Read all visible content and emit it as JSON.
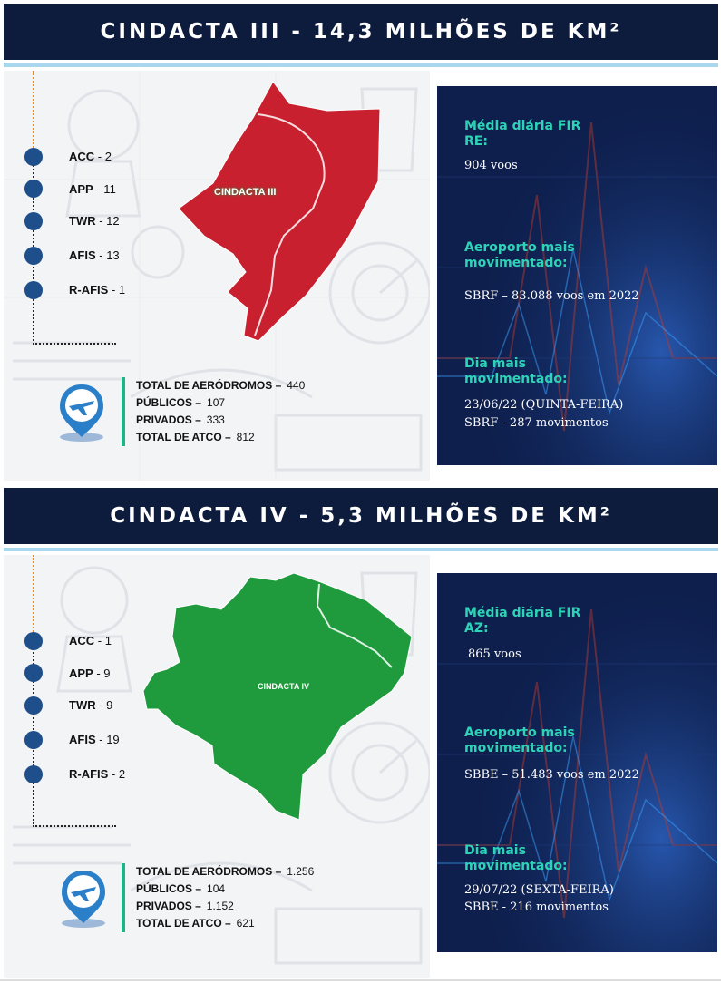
{
  "sections": [
    {
      "title": "CINDACTA III - 14,3 MILHÕES DE KM²",
      "map_label": "CINDACTA III",
      "map_color": "#c8202e",
      "units": [
        {
          "name": "ACC",
          "value": "- 2"
        },
        {
          "name": "APP",
          "value": "- 11"
        },
        {
          "name": "TWR",
          "value": "- 12"
        },
        {
          "name": "AFIS",
          "value": "- 13"
        },
        {
          "name": "R-AFIS",
          "value": "- 1"
        }
      ],
      "totals": [
        {
          "label": "TOTAL DE AERÓDROMOS –",
          "value": "440"
        },
        {
          "label": "PÚBLICOS –",
          "value": "107"
        },
        {
          "label": "PRIVADOS –",
          "value": "333"
        },
        {
          "label": "TOTAL DE ATCO –",
          "value": "812"
        }
      ],
      "stats": {
        "daily_heading": "Média diária FIR RE:",
        "daily_value": "904 voos",
        "airport_heading": "Aeroporto mais movimentado:",
        "airport_value": "SBRF – 83.088 voos em 2022",
        "day_heading": "Dia mais movimentado:",
        "day_date": "23/06/22 (QUINTA-FEIRA)",
        "day_moves": "SBRF - 287 movimentos"
      }
    },
    {
      "title": "CINDACTA IV - 5,3 MILHÕES DE KM²",
      "map_label": "CINDACTA IV",
      "map_color": "#1f9b3e",
      "units": [
        {
          "name": "ACC",
          "value": "- 1"
        },
        {
          "name": "APP",
          "value": "- 9"
        },
        {
          "name": "TWR",
          "value": "- 9"
        },
        {
          "name": "AFIS",
          "value": "- 19"
        },
        {
          "name": "R-AFIS",
          "value": "- 2"
        }
      ],
      "totals": [
        {
          "label": "TOTAL DE AERÓDROMOS –",
          "value": "1.256"
        },
        {
          "label": "PÚBLICOS –",
          "value": "104"
        },
        {
          "label": "PRIVADOS –",
          "value": "1.152"
        },
        {
          "label": "TOTAL DE ATCO –",
          "value": "621"
        }
      ],
      "stats": {
        "daily_heading": "Média diária FIR AZ:",
        "daily_value": "865 voos",
        "airport_heading": "Aeroporto mais movimentado:",
        "airport_value": "SBBE – 51.483 voos  em 2022",
        "day_heading": "Dia mais movimentado:",
        "day_date": "29/07/22 (SEXTA-FEIRA)",
        "day_moves": "SBBE - 216 movimentos"
      }
    }
  ]
}
